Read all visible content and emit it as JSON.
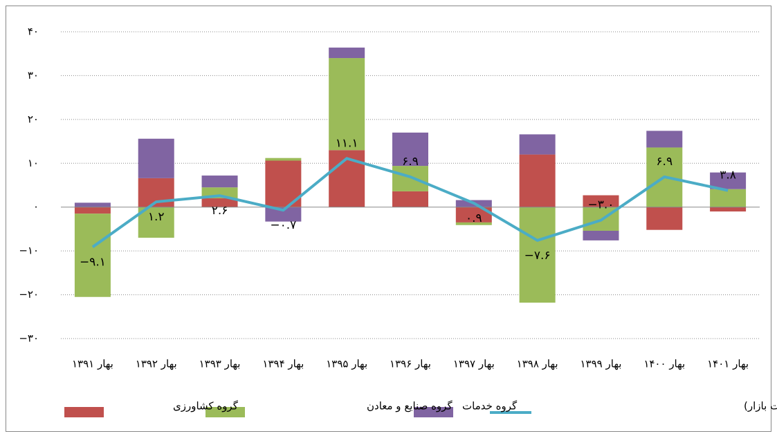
{
  "chart_data": {
    "type": "bar",
    "stacked": true,
    "categories": [
      "بهار ۱۳۹۱",
      "بهار ۱۳۹۲",
      "بهار ۱۳۹۳",
      "بهار ۱۳۹۴",
      "بهار ۱۳۹۵",
      "بهار ۱۳۹۶",
      "بهار ۱۳۹۷",
      "بهار ۱۳۹۸",
      "بهار ۱۳۹۹",
      "بهار ۱۴۰۰",
      "بهار ۱۴۰۱"
    ],
    "series": [
      {
        "name": "گروه کشاورزی",
        "color": "#c0504d",
        "values": [
          -1.5,
          6.6,
          2,
          10.6,
          13,
          3.6,
          -3.5,
          12,
          2.7,
          -5.2,
          -1
        ]
      },
      {
        "name": "گروه صنایع و معادن",
        "color": "#9bbb59",
        "values": [
          -19,
          -7,
          2.5,
          0.6,
          21,
          5.8,
          -0.6,
          -21.8,
          -5.4,
          13.6,
          4.1
        ]
      },
      {
        "name": "گروه خدمات",
        "color": "#8064a2",
        "values": [
          1,
          9,
          2.7,
          -3.3,
          2.4,
          7.6,
          1.6,
          4.6,
          -2.2,
          3.8,
          3.8
        ]
      },
      {
        "name": "محصول ناخالص داخلی (به قیمت بازار)",
        "color": "#4bacc6",
        "type": "line",
        "values": [
          -9.1,
          1.2,
          2.6,
          -0.7,
          11.1,
          6.9,
          0.9,
          -7.6,
          -3.0,
          6.9,
          3.8
        ],
        "value_labels": [
          "−۹.۱",
          "۱.۲",
          "۲.۶",
          "−۰.۷",
          "۱۱.۱",
          "۶.۹",
          "۰.۹",
          "−۷.۶",
          "−۳.۰",
          "۶.۹",
          "۳.۸"
        ]
      }
    ],
    "ylim": [
      -30,
      40
    ],
    "yticks": [
      {
        "value": -30,
        "label": "−۳۰"
      },
      {
        "value": -20,
        "label": "−۲۰"
      },
      {
        "value": -10,
        "label": "−۱۰"
      },
      {
        "value": 0,
        "label": "۰"
      },
      {
        "value": 10,
        "label": "۱۰"
      },
      {
        "value": 20,
        "label": "۲۰"
      },
      {
        "value": 30,
        "label": "۳۰"
      },
      {
        "value": 40,
        "label": "۴۰"
      }
    ],
    "grid": true
  }
}
